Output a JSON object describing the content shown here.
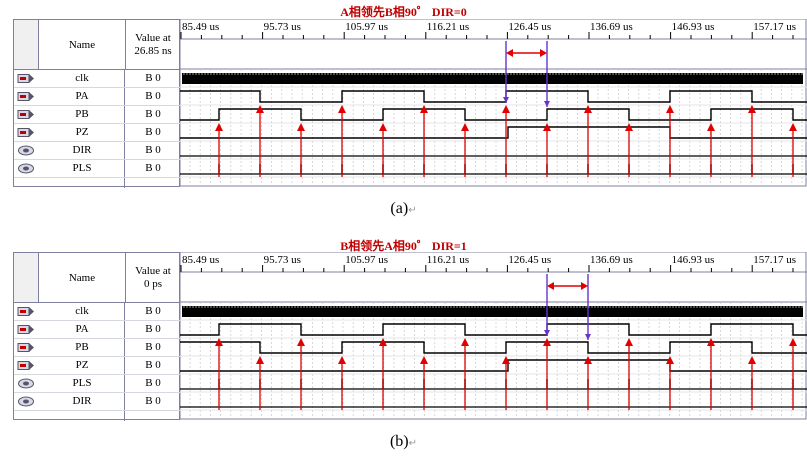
{
  "panels": [
    {
      "title": "A相领先B相90゜ DIR=0",
      "header": {
        "name": "Name",
        "value_at": "Value at",
        "value_time": "26.85 ns"
      },
      "time_labels": [
        "85.49 us",
        "95.73 us",
        "105.97 us",
        "116.21 us",
        "126.45 us",
        "136.69 us",
        "146.93 us",
        "157.17 us"
      ],
      "signals": [
        {
          "name": "clk",
          "value": "B 0",
          "icon": "input-pin-icon"
        },
        {
          "name": "PA",
          "value": "B 0",
          "icon": "input-pin-icon"
        },
        {
          "name": "PB",
          "value": "B 0",
          "icon": "input-pin-icon"
        },
        {
          "name": "PZ",
          "value": "B 0",
          "icon": "input-pin-icon"
        },
        {
          "name": "DIR",
          "value": "B 0",
          "icon": "output-pin-icon"
        },
        {
          "name": "PLS",
          "value": "B 0",
          "icon": "output-pin-icon"
        }
      ],
      "caption": "(a)"
    },
    {
      "title": "B相领先A相90゜ DIR=1",
      "header": {
        "name": "Name",
        "value_at": "Value at",
        "value_time": "0 ps"
      },
      "time_labels": [
        "85.49 us",
        "95.73 us",
        "105.97 us",
        "116.21 us",
        "126.45 us",
        "136.69 us",
        "146.93 us",
        "157.17 us"
      ],
      "signals": [
        {
          "name": "clk",
          "value": "B 0",
          "icon": "input-pin-icon"
        },
        {
          "name": "PA",
          "value": "B 0",
          "icon": "input-pin-icon"
        },
        {
          "name": "PB",
          "value": "B 0",
          "icon": "input-pin-icon"
        },
        {
          "name": "PZ",
          "value": "B 0",
          "icon": "input-pin-icon"
        },
        {
          "name": "PLS",
          "value": "B 0",
          "icon": "output-pin-icon"
        },
        {
          "name": "DIR",
          "value": "B 0",
          "icon": "output-pin-icon"
        }
      ],
      "caption": "(b)"
    }
  ],
  "colors": {
    "annotation": "#e00000",
    "cursor": "#6633cc",
    "grid": "#c8c8c8",
    "frame": "#7f7f9f"
  }
}
